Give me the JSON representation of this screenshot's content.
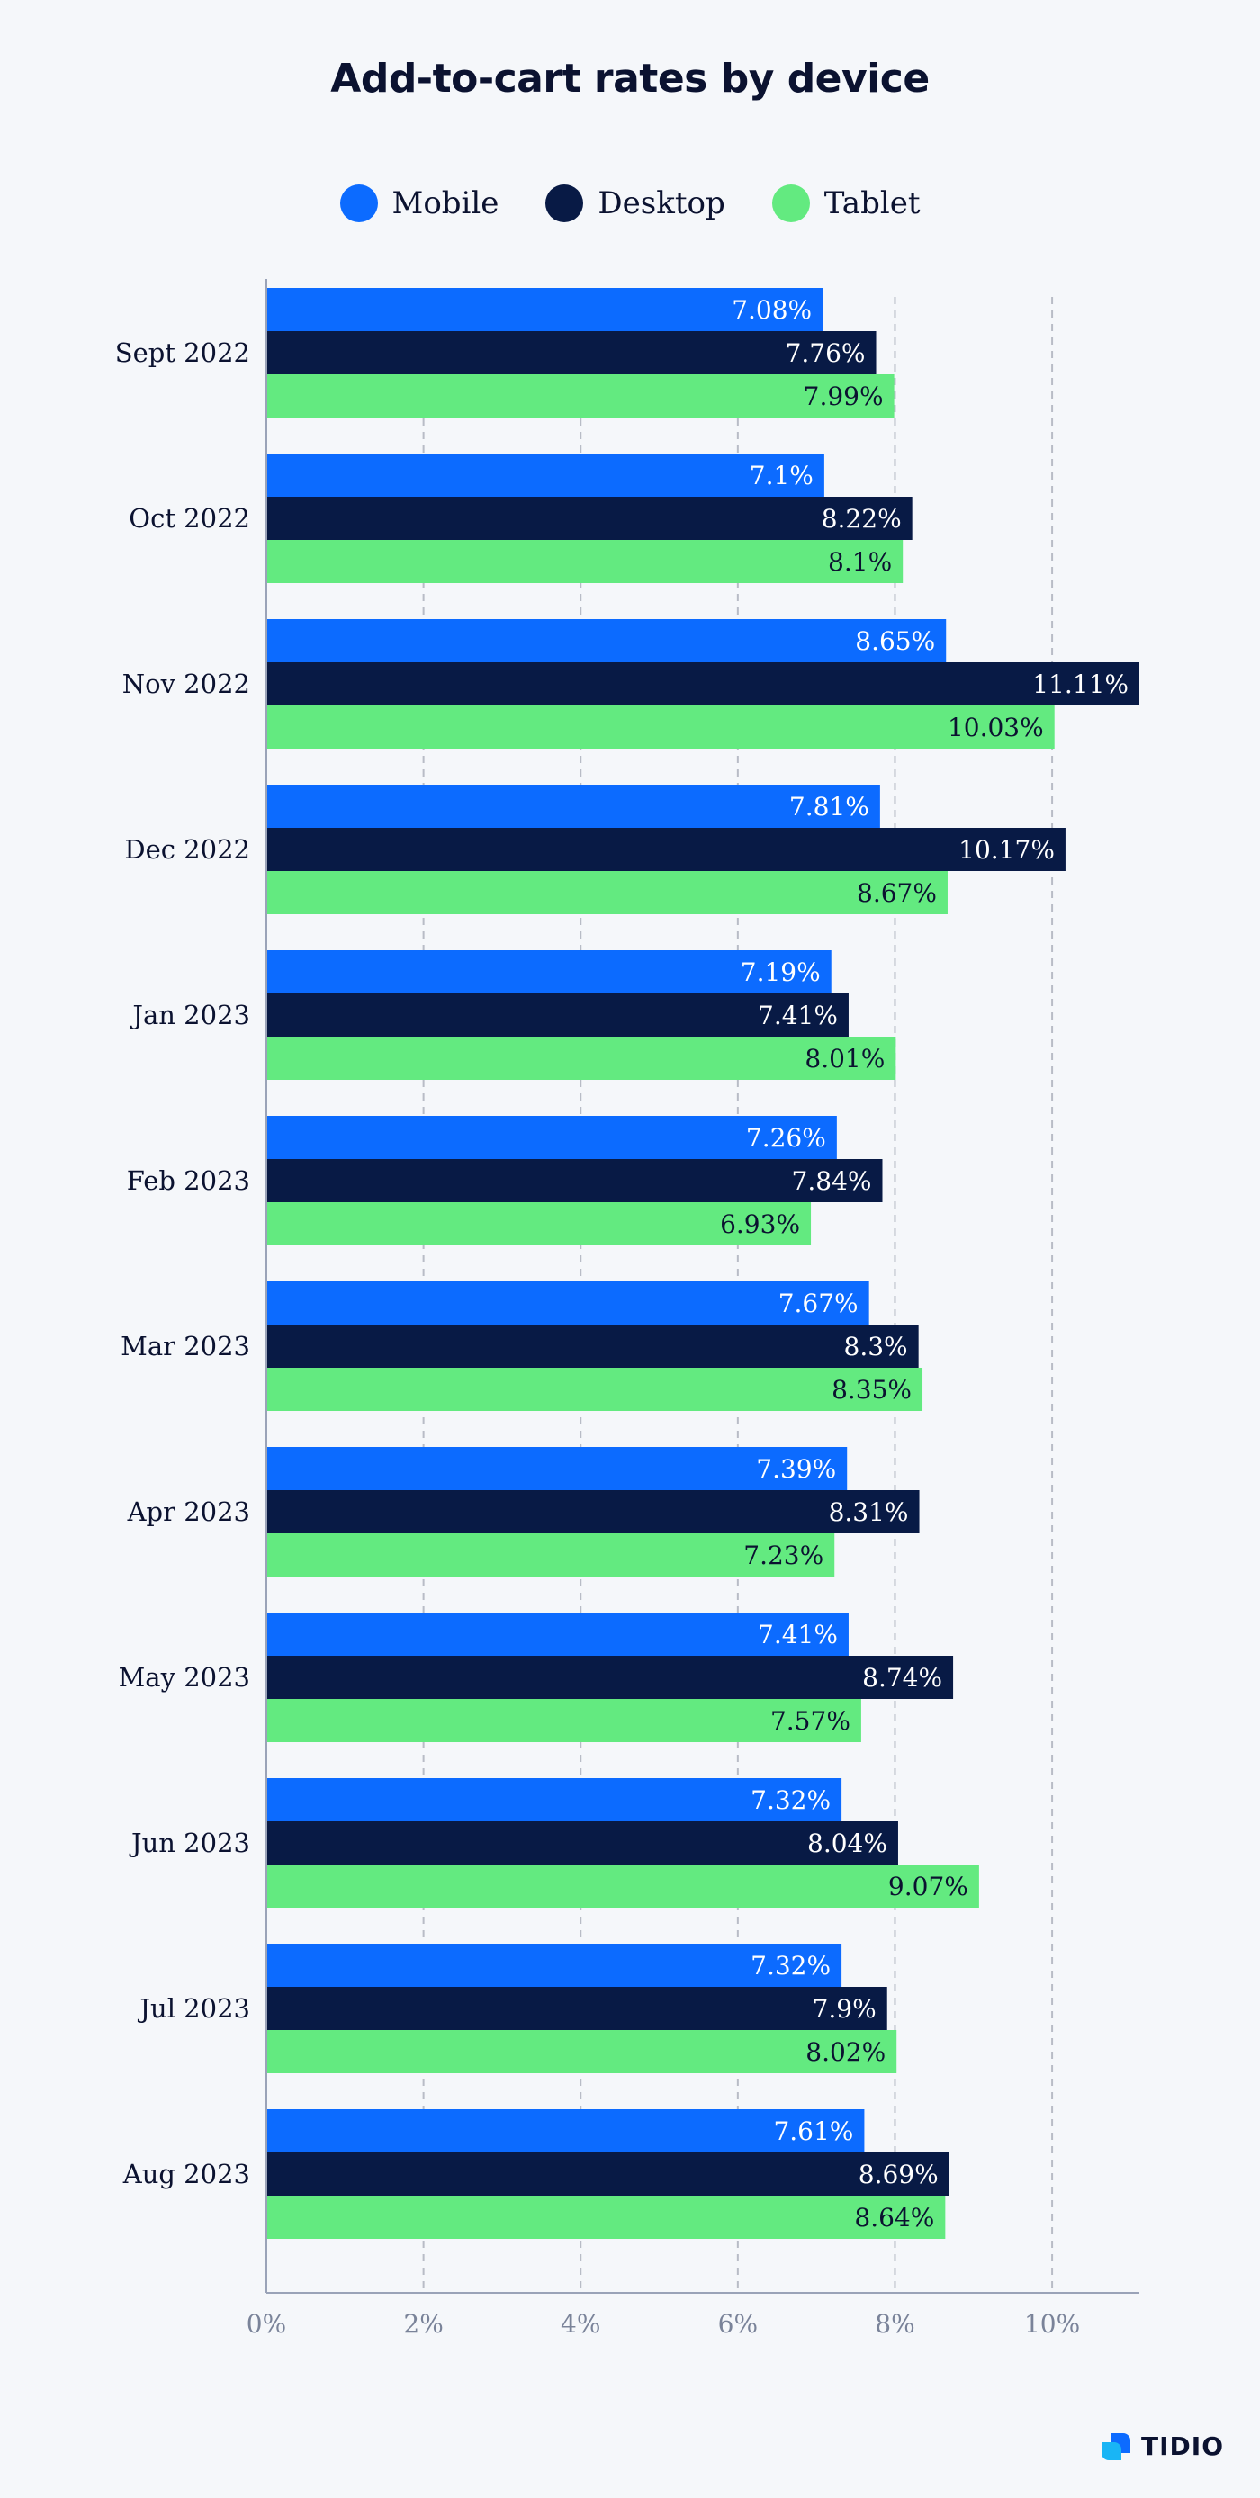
{
  "chart_data": {
    "type": "bar",
    "orientation": "horizontal",
    "title": "Add-to-cart rates by device",
    "categories": [
      "Sept 2022",
      "Oct 2022",
      "Nov 2022",
      "Dec 2022",
      "Jan 2023",
      "Feb 2023",
      "Mar 2023",
      "Apr 2023",
      "May 2023",
      "Jun 2023",
      "Jul 2023",
      "Aug 2023"
    ],
    "series": [
      {
        "name": "Mobile",
        "color": "#0c6bff",
        "label_color": "#ffffff",
        "values": [
          7.08,
          7.1,
          8.65,
          7.81,
          7.19,
          7.26,
          7.67,
          7.39,
          7.41,
          7.32,
          7.32,
          7.61
        ],
        "labels": [
          "7.08%",
          "7.1%",
          "8.65%",
          "7.81%",
          "7.19%",
          "7.26%",
          "7.67%",
          "7.39%",
          "7.41%",
          "7.32%",
          "7.32%",
          "7.61%"
        ]
      },
      {
        "name": "Desktop",
        "color": "#081a45",
        "label_color": "#ffffff",
        "values": [
          7.76,
          8.22,
          11.11,
          10.17,
          7.41,
          7.84,
          8.3,
          8.31,
          8.74,
          8.04,
          7.9,
          8.69
        ],
        "labels": [
          "7.76%",
          "8.22%",
          "11.11%",
          "10.17%",
          "7.41%",
          "7.84%",
          "8.3%",
          "8.31%",
          "8.74%",
          "8.04%",
          "7.9%",
          "8.69%"
        ]
      },
      {
        "name": "Tablet",
        "color": "#63ea80",
        "label_color": "#0b1230",
        "values": [
          7.99,
          8.1,
          10.03,
          8.67,
          8.01,
          6.93,
          8.35,
          7.23,
          7.57,
          9.07,
          8.02,
          8.64
        ],
        "labels": [
          "7.99%",
          "8.1%",
          "10.03%",
          "8.67%",
          "8.01%",
          "6.93%",
          "8.35%",
          "7.23%",
          "7.57%",
          "9.07%",
          "8.02%",
          "8.64%"
        ]
      }
    ],
    "xlim": [
      0,
      11.11
    ],
    "xticks": [
      0,
      2,
      4,
      6,
      8,
      10
    ],
    "xtick_labels": [
      "0%",
      "2%",
      "4%",
      "6%",
      "8%",
      "10%"
    ],
    "grid": "vertical dashed",
    "legend": "top-center"
  },
  "brand": {
    "name": "TIDIO"
  }
}
